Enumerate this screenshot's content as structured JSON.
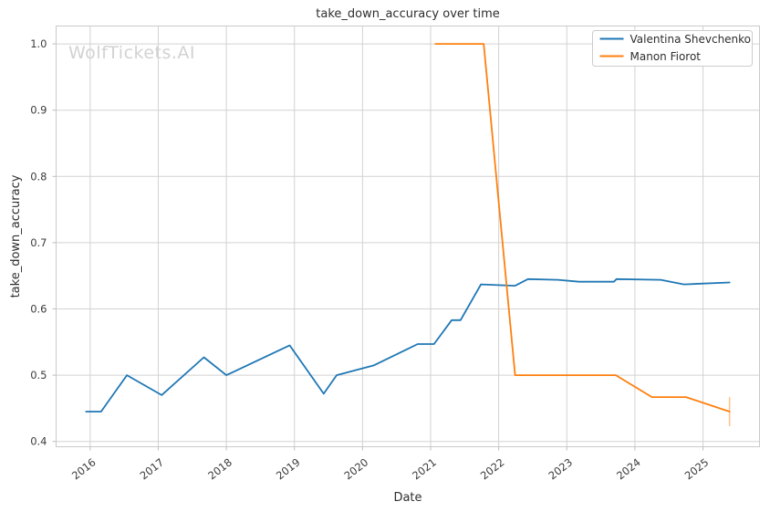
{
  "watermark": "WolfTickets.AI",
  "chart_data": {
    "type": "line",
    "title": "take_down_accuracy over time",
    "xlabel": "Date",
    "ylabel": "take_down_accuracy",
    "xlim": [
      2015.5,
      2025.83
    ],
    "ylim": [
      0.392,
      1.027
    ],
    "x_ticks": [
      2016,
      2017,
      2018,
      2019,
      2020,
      2021,
      2022,
      2023,
      2024,
      2025
    ],
    "y_ticks": [
      0.4,
      0.5,
      0.6,
      0.7,
      0.8,
      0.9,
      1.0
    ],
    "grid": true,
    "legend_position": "upper right",
    "series": [
      {
        "name": "Valentina Shevchenko",
        "color": "#1f77b4",
        "x": [
          2015.94,
          2016.16,
          2016.54,
          2017.05,
          2017.67,
          2018.0,
          2018.93,
          2019.43,
          2019.62,
          2020.17,
          2020.81,
          2021.05,
          2021.31,
          2021.44,
          2021.74,
          2022.24,
          2022.43,
          2022.87,
          2023.18,
          2023.69,
          2023.73,
          2024.38,
          2024.72,
          2025.39
        ],
        "y": [
          0.445,
          0.445,
          0.5,
          0.47,
          0.527,
          0.5,
          0.545,
          0.472,
          0.5,
          0.515,
          0.547,
          0.547,
          0.583,
          0.583,
          0.637,
          0.635,
          0.645,
          0.644,
          0.641,
          0.641,
          0.645,
          0.644,
          0.637,
          0.64
        ]
      },
      {
        "name": "Manon Fiorot",
        "color": "#ff7f0e",
        "x": [
          2021.07,
          2021.78,
          2022.24,
          2023.72,
          2024.25,
          2024.75,
          2025.39
        ],
        "y": [
          1.0,
          1.0,
          0.5,
          0.5,
          0.467,
          0.467,
          0.445
        ],
        "error_bar": {
          "x": 2025.39,
          "y_low": 0.423,
          "y_high": 0.467
        }
      }
    ]
  }
}
